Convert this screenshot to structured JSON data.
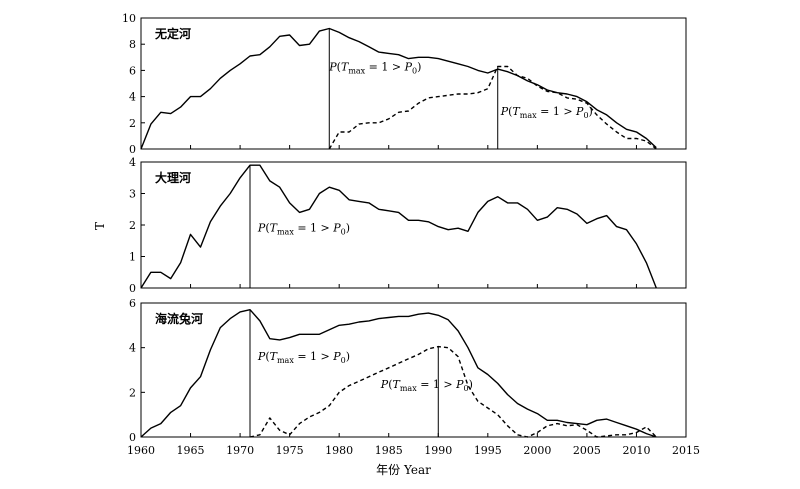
{
  "chart_data": [
    {
      "type": "line",
      "panel_label": "无定河",
      "ylim": [
        0,
        10
      ],
      "yticks": [
        0,
        2,
        4,
        6,
        8,
        10
      ],
      "xlim": [
        1960,
        2015
      ],
      "series": [
        {
          "style": "solid",
          "x": [
            1960,
            1961,
            1962,
            1963,
            1964,
            1965,
            1966,
            1967,
            1968,
            1969,
            1970,
            1971,
            1972,
            1973,
            1974,
            1975,
            1976,
            1977,
            1978,
            1979,
            1980,
            1981,
            1982,
            1983,
            1984,
            1985,
            1986,
            1987,
            1988,
            1989,
            1990,
            1991,
            1992,
            1993,
            1994,
            1995,
            1996,
            1997,
            1998,
            1999,
            2000,
            2001,
            2002,
            2003,
            2004,
            2005,
            2006,
            2007,
            2008,
            2009,
            2010,
            2011,
            2012
          ],
          "y": [
            0,
            1.9,
            2.8,
            2.7,
            3.2,
            4.0,
            4.0,
            4.6,
            5.4,
            6.0,
            6.5,
            7.1,
            7.2,
            7.8,
            8.6,
            8.7,
            7.9,
            8.0,
            9.0,
            9.2,
            8.9,
            8.5,
            8.2,
            7.8,
            7.4,
            7.3,
            7.2,
            6.9,
            7.0,
            7.0,
            6.9,
            6.7,
            6.5,
            6.3,
            6.0,
            5.8,
            6.1,
            5.9,
            5.6,
            5.2,
            4.9,
            4.5,
            4.3,
            4.2,
            4.0,
            3.6,
            3.0,
            2.6,
            2.0,
            1.5,
            1.3,
            0.8,
            0.1
          ]
        },
        {
          "style": "dashed",
          "x": [
            1979,
            1980,
            1981,
            1982,
            1983,
            1984,
            1985,
            1986,
            1987,
            1988,
            1989,
            1990,
            1991,
            1992,
            1993,
            1994,
            1995,
            1996,
            1997,
            1998,
            1999,
            2000,
            2001,
            2002,
            2003,
            2004,
            2005,
            2006,
            2007,
            2008,
            2009,
            2010,
            2011,
            2012
          ],
          "y": [
            0,
            1.3,
            1.3,
            1.9,
            2.0,
            2.0,
            2.3,
            2.8,
            2.9,
            3.5,
            3.9,
            4.0,
            4.1,
            4.2,
            4.2,
            4.3,
            4.6,
            6.3,
            6.3,
            5.6,
            5.4,
            4.8,
            4.4,
            4.3,
            3.9,
            3.8,
            3.5,
            2.6,
            1.9,
            1.3,
            0.8,
            0.8,
            0.6,
            0.0
          ]
        }
      ],
      "annotations": [
        {
          "x": 1979,
          "y_top": 9.2,
          "label_x": 1979,
          "label_y": 6.0
        },
        {
          "x": 1996,
          "y_top": 6.3,
          "label_x": 1996.3,
          "label_y": 2.6
        }
      ]
    },
    {
      "type": "line",
      "panel_label": "大理河",
      "ylim": [
        0,
        4
      ],
      "yticks": [
        0,
        1,
        2,
        3,
        4
      ],
      "xlim": [
        1960,
        2015
      ],
      "series": [
        {
          "style": "solid",
          "x": [
            1960,
            1961,
            1962,
            1963,
            1964,
            1965,
            1966,
            1967,
            1968,
            1969,
            1970,
            1971,
            1972,
            1973,
            1974,
            1975,
            1976,
            1977,
            1978,
            1979,
            1980,
            1981,
            1982,
            1983,
            1984,
            1985,
            1986,
            1987,
            1988,
            1989,
            1990,
            1991,
            1992,
            1993,
            1994,
            1995,
            1996,
            1997,
            1998,
            1999,
            2000,
            2001,
            2002,
            2003,
            2004,
            2005,
            2006,
            2007,
            2008,
            2009,
            2010,
            2011,
            2012
          ],
          "y": [
            0,
            0.5,
            0.5,
            0.3,
            0.8,
            1.7,
            1.3,
            2.1,
            2.6,
            3.0,
            3.5,
            3.9,
            3.9,
            3.4,
            3.2,
            2.7,
            2.4,
            2.5,
            3.0,
            3.2,
            3.1,
            2.8,
            2.75,
            2.7,
            2.5,
            2.45,
            2.4,
            2.15,
            2.15,
            2.1,
            1.95,
            1.85,
            1.9,
            1.8,
            2.4,
            2.75,
            2.9,
            2.7,
            2.7,
            2.5,
            2.15,
            2.25,
            2.55,
            2.5,
            2.35,
            2.05,
            2.2,
            2.3,
            1.95,
            1.85,
            1.4,
            0.8,
            0.0
          ]
        }
      ],
      "annotations": [
        {
          "x": 1971,
          "y_top": 3.9,
          "label_x": 1971.8,
          "label_y": 1.8
        }
      ]
    },
    {
      "type": "line",
      "panel_label": "海流兔河",
      "ylim": [
        0,
        6
      ],
      "yticks": [
        0,
        2,
        4,
        6
      ],
      "xlim": [
        1960,
        2015
      ],
      "xticks": [
        1960,
        1965,
        1970,
        1975,
        1980,
        1985,
        1990,
        1995,
        2000,
        2005,
        2010,
        2015
      ],
      "xlabel": "年份 Year",
      "series": [
        {
          "style": "solid",
          "x": [
            1960,
            1961,
            1962,
            1963,
            1964,
            1965,
            1966,
            1967,
            1968,
            1969,
            1970,
            1971,
            1972,
            1973,
            1974,
            1975,
            1976,
            1977,
            1978,
            1979,
            1980,
            1981,
            1982,
            1983,
            1984,
            1985,
            1986,
            1987,
            1988,
            1989,
            1990,
            1991,
            1992,
            1993,
            1994,
            1995,
            1996,
            1997,
            1998,
            1999,
            2000,
            2001,
            2002,
            2003,
            2004,
            2005,
            2006,
            2007,
            2008,
            2009,
            2010,
            2011,
            2012
          ],
          "y": [
            0,
            0.4,
            0.6,
            1.1,
            1.4,
            2.2,
            2.7,
            3.9,
            4.9,
            5.3,
            5.6,
            5.7,
            5.2,
            4.4,
            4.35,
            4.45,
            4.6,
            4.6,
            4.6,
            4.8,
            5.0,
            5.05,
            5.15,
            5.2,
            5.3,
            5.35,
            5.4,
            5.4,
            5.5,
            5.55,
            5.45,
            5.25,
            4.75,
            4.0,
            3.1,
            2.8,
            2.4,
            1.9,
            1.5,
            1.25,
            1.05,
            0.75,
            0.75,
            0.65,
            0.6,
            0.55,
            0.75,
            0.8,
            0.65,
            0.5,
            0.35,
            0.15,
            0.0
          ]
        },
        {
          "style": "dashed",
          "x": [
            1971,
            1972,
            1973,
            1974,
            1975,
            1976,
            1977,
            1978,
            1979,
            1980,
            1981,
            1982,
            1983,
            1984,
            1985,
            1986,
            1987,
            1988,
            1989,
            1990,
            1991,
            1992,
            1993,
            1994,
            1995,
            1996,
            1997,
            1998,
            1999,
            2000,
            2001,
            2002,
            2003,
            2004,
            2005,
            2006,
            2007,
            2008,
            2009,
            2010,
            2011,
            2012
          ],
          "y": [
            0,
            0.1,
            0.85,
            0.3,
            0.1,
            0.6,
            0.9,
            1.1,
            1.4,
            2.0,
            2.3,
            2.5,
            2.7,
            2.9,
            3.1,
            3.3,
            3.5,
            3.7,
            3.95,
            4.05,
            4.0,
            3.6,
            2.3,
            1.6,
            1.3,
            1.0,
            0.5,
            0.1,
            0.0,
            0.2,
            0.5,
            0.6,
            0.5,
            0.55,
            0.3,
            0.0,
            0.05,
            0.1,
            0.1,
            0.2,
            0.45,
            0.0
          ]
        }
      ],
      "annotations": [
        {
          "x": 1971,
          "y_top": 5.7,
          "label_x": 1971.8,
          "label_y": 3.45
        },
        {
          "x": 1990,
          "y_top": 4.05,
          "label_x": 1984.2,
          "label_y": 2.2
        }
      ]
    }
  ],
  "annotation_text": {
    "p": "P",
    "open": "(",
    "t": "T",
    "sub_max": "max",
    "mid": " = 1 > ",
    "p0": "P",
    "sub0": "0",
    "close": ")"
  },
  "shared_ylabel": "T"
}
